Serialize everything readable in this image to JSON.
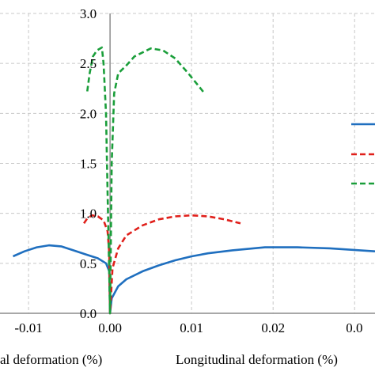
{
  "chart_data": {
    "type": "line",
    "xlabel_left": "al deformation (%)",
    "xlabel_right": "Longitudinal deformation (%)",
    "xlim": [
      -0.0135,
      0.0325
    ],
    "ylim": [
      0,
      3.0
    ],
    "x_ticks": [
      {
        "value": -0.01,
        "label": "-0.01"
      },
      {
        "value": 0.0,
        "label": "0.00"
      },
      {
        "value": 0.01,
        "label": "0.01"
      },
      {
        "value": 0.02,
        "label": "0.02"
      },
      {
        "value": 0.03,
        "label": "0.0"
      }
    ],
    "y_ticks": [
      {
        "value": 0.0,
        "label": "0.0"
      },
      {
        "value": 0.5,
        "label": "0.5"
      },
      {
        "value": 1.0,
        "label": "1.0"
      },
      {
        "value": 1.5,
        "label": "1.5"
      },
      {
        "value": 2.0,
        "label": "2.0"
      },
      {
        "value": 2.5,
        "label": "2.5"
      },
      {
        "value": 3.0,
        "label": "3.0"
      }
    ],
    "grid": true,
    "legend_placement": "right",
    "series": [
      {
        "color": "#1f6fbf",
        "dash": "solid",
        "points": [
          [
            -0.0119,
            0.57
          ],
          [
            -0.0105,
            0.62
          ],
          [
            -0.009,
            0.66
          ],
          [
            -0.0075,
            0.68
          ],
          [
            -0.006,
            0.67
          ],
          [
            -0.0045,
            0.63
          ],
          [
            -0.003,
            0.59
          ],
          [
            -0.0015,
            0.55
          ],
          [
            -0.0005,
            0.5
          ],
          [
            -0.0001,
            0.42
          ],
          [
            0.0,
            0.0
          ],
          [
            0.0002,
            0.15
          ],
          [
            0.001,
            0.27
          ],
          [
            0.002,
            0.34
          ],
          [
            0.004,
            0.42
          ],
          [
            0.006,
            0.48
          ],
          [
            0.008,
            0.53
          ],
          [
            0.01,
            0.57
          ],
          [
            0.012,
            0.6
          ],
          [
            0.015,
            0.63
          ],
          [
            0.019,
            0.66
          ],
          [
            0.023,
            0.66
          ],
          [
            0.027,
            0.65
          ],
          [
            0.0325,
            0.62
          ]
        ]
      },
      {
        "color": "#e0201b",
        "dash": "dashed",
        "points": [
          [
            -0.0032,
            0.9
          ],
          [
            -0.0028,
            0.95
          ],
          [
            -0.0022,
            0.98
          ],
          [
            -0.0015,
            0.97
          ],
          [
            -0.0008,
            0.93
          ],
          [
            -0.0003,
            0.82
          ],
          [
            -0.0001,
            0.6
          ],
          [
            0.0,
            0.0
          ],
          [
            0.0003,
            0.45
          ],
          [
            0.001,
            0.65
          ],
          [
            0.002,
            0.78
          ],
          [
            0.004,
            0.88
          ],
          [
            0.006,
            0.94
          ],
          [
            0.008,
            0.97
          ],
          [
            0.01,
            0.98
          ],
          [
            0.012,
            0.97
          ],
          [
            0.014,
            0.94
          ],
          [
            0.016,
            0.9
          ]
        ]
      },
      {
        "color": "#1a9e3a",
        "dash": "dashed",
        "points": [
          [
            -0.0028,
            2.22
          ],
          [
            -0.0025,
            2.4
          ],
          [
            -0.0021,
            2.57
          ],
          [
            -0.0016,
            2.63
          ],
          [
            -0.001,
            2.66
          ],
          [
            -0.0008,
            2.5
          ],
          [
            -0.0005,
            2.0
          ],
          [
            -0.0003,
            1.2
          ],
          [
            0.0,
            0.0
          ],
          [
            0.0002,
            1.5
          ],
          [
            0.0005,
            2.2
          ],
          [
            0.001,
            2.4
          ],
          [
            0.002,
            2.48
          ],
          [
            0.003,
            2.57
          ],
          [
            0.005,
            2.65
          ],
          [
            0.0065,
            2.63
          ],
          [
            0.008,
            2.55
          ],
          [
            0.0095,
            2.41
          ],
          [
            0.0115,
            2.21
          ]
        ]
      }
    ]
  }
}
